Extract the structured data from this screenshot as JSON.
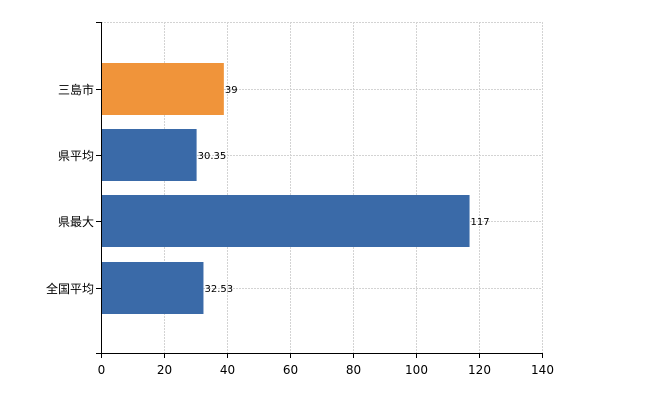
{
  "chart_data": {
    "type": "bar",
    "orientation": "horizontal",
    "categories": [
      "三島市",
      "県平均",
      "県最大",
      "全国平均"
    ],
    "values": [
      39,
      30.35,
      117,
      32.53
    ],
    "data_labels": [
      "39",
      "30.35",
      "117",
      "32.53"
    ],
    "bar_colors": [
      "#f0943a",
      "#3a6aa8",
      "#3a6aa8",
      "#3a6aa8"
    ],
    "xlim": [
      0,
      140
    ],
    "x_ticks": [
      0,
      20,
      40,
      60,
      80,
      100,
      120,
      140
    ],
    "grid": true,
    "legend": "none"
  }
}
